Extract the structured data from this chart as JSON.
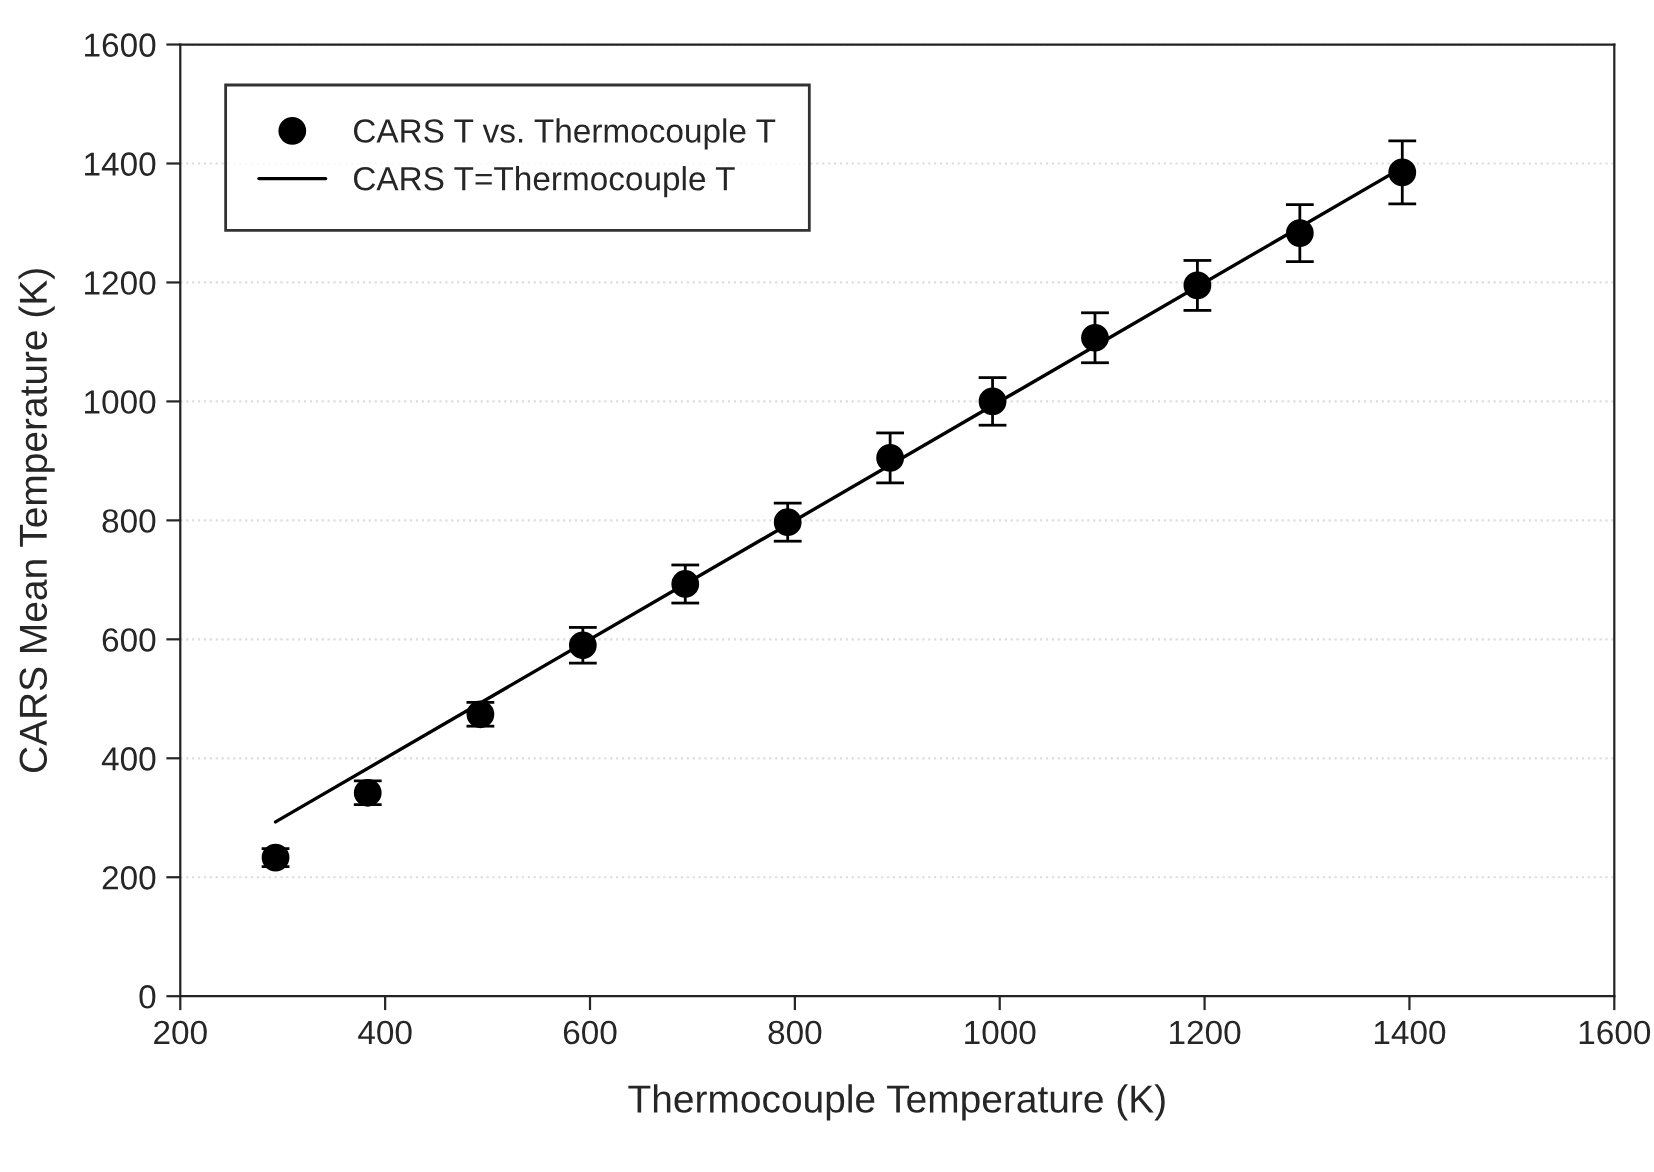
{
  "chart_data": {
    "type": "scatter",
    "xlabel": "Thermocouple Temperature (K)",
    "ylabel": "CARS Mean Temperature (K)",
    "series": [
      {
        "name": "CARS T vs. Thermocouple T",
        "color": "#000000",
        "marker": "circle",
        "x": [
          293,
          383,
          493,
          593,
          693,
          793,
          893,
          993,
          1093,
          1193,
          1293,
          1393
        ],
        "values": [
          233,
          342,
          474,
          590,
          693,
          797,
          905,
          1000,
          1107,
          1195,
          1283,
          1385
        ],
        "errors": [
          15,
          20,
          20,
          30,
          32,
          32,
          42,
          40,
          42,
          42,
          48,
          53
        ]
      },
      {
        "name": "CARS T=Thermocouple T",
        "type": "line",
        "color": "#000000",
        "line_style": "solid",
        "x": [
          293,
          1393
        ],
        "values": [
          293,
          1393
        ]
      }
    ],
    "xlim": [
      200,
      1600
    ],
    "ylim": [
      0,
      1600
    ],
    "xticks": [
      200,
      400,
      600,
      800,
      1000,
      1200,
      1400,
      1600
    ],
    "yticks": [
      0,
      200,
      400,
      600,
      800,
      1000,
      1200,
      1400,
      1600
    ],
    "grid": "y",
    "legend": "top left"
  }
}
